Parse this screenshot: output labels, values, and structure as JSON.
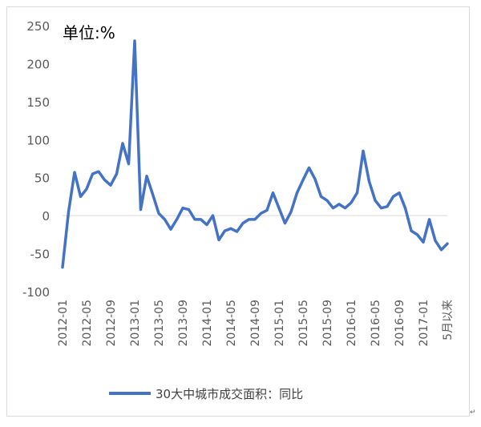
{
  "chart_data": {
    "type": "line",
    "unit_label": "单位:%",
    "x_tick_labels": [
      "2012-01",
      "2012-05",
      "2012-09",
      "2013-01",
      "2013-05",
      "2013-09",
      "2014-01",
      "2014-05",
      "2014-09",
      "2015-01",
      "2015-05",
      "2015-09",
      "2016-01",
      "2016-05",
      "2016-09",
      "2017-01",
      "5月以来"
    ],
    "y_ticks": [
      250,
      200,
      150,
      100,
      50,
      0,
      -50,
      -100
    ],
    "ylim": [
      -100,
      250
    ],
    "series": [
      {
        "name": "30大中城市成交面积：同比",
        "color": "#4472C4",
        "values": [
          -68,
          5,
          57,
          25,
          35,
          55,
          58,
          47,
          40,
          55,
          95,
          68,
          230,
          8,
          52,
          28,
          3,
          -5,
          -18,
          -5,
          10,
          8,
          -5,
          -5,
          -12,
          0,
          -32,
          -20,
          -17,
          -21,
          -10,
          -5,
          -5,
          3,
          7,
          30,
          10,
          -10,
          5,
          30,
          47,
          63,
          48,
          25,
          20,
          10,
          15,
          10,
          17,
          30,
          85,
          45,
          20,
          10,
          12,
          25,
          30,
          10,
          -20,
          -25,
          -35,
          -5,
          -33,
          -45,
          -37
        ]
      }
    ]
  }
}
